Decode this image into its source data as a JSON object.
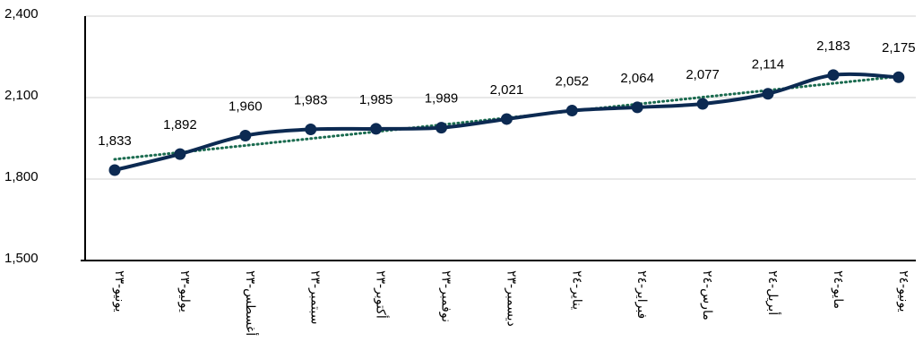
{
  "chart_data": {
    "type": "line",
    "categories": [
      "يونيو-٢٣",
      "يوليو-٢٣",
      "أغسطس-٢٣",
      "سبتمبر-٢٣",
      "أكتوبر-٢٣",
      "نوفمبر-٢٣",
      "ديسمبر-٢٣",
      "يناير-٢٤",
      "فبراير-٢٤",
      "مارس-٢٤",
      "أبريل-٢٤",
      "مايو-٢٤",
      "يونيو-٢٤"
    ],
    "values": [
      1833,
      1892,
      1960,
      1983,
      1985,
      1989,
      2021,
      2052,
      2064,
      2077,
      2114,
      2183,
      2175
    ],
    "value_labels": [
      "1,833",
      "1,892",
      "1,960",
      "1,983",
      "1,985",
      "1,989",
      "2,021",
      "2,052",
      "2,064",
      "2,077",
      "2,114",
      "2,183",
      "2,175"
    ],
    "color": "#0c2a52",
    "ylim": [
      1500,
      2400
    ],
    "yticks": [
      {
        "value": 1500,
        "label": "1,500"
      },
      {
        "value": 1800,
        "label": "1,800"
      },
      {
        "value": 2100,
        "label": "2,100"
      },
      {
        "value": 2400,
        "label": "2,400"
      }
    ],
    "grid": true,
    "trendline": true,
    "trendline_color": "#1a6b4f"
  }
}
